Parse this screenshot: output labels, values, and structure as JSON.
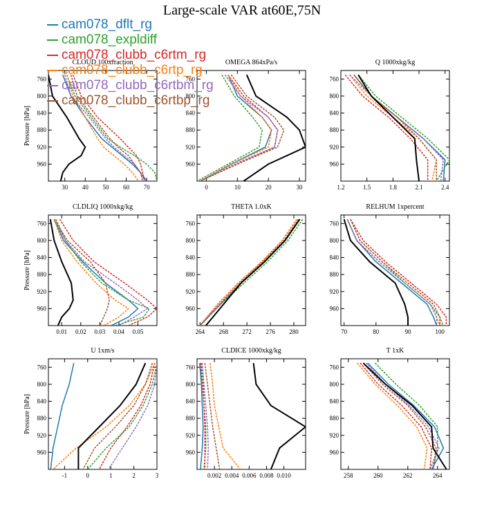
{
  "figure": {
    "title": "Large-scale VAR at60E,75N",
    "legend": [
      {
        "name": "cam078_dflt_rg",
        "color": "#1f77b4"
      },
      {
        "name": "cam078_expldiff",
        "color": "#2ca02c"
      },
      {
        "name": "cam078_clubb_c6rtm_rg",
        "color": "#d62728"
      },
      {
        "name": "cam078_clubb_c6rtp_rg",
        "color": "#ff7f0e"
      },
      {
        "name": "cam078_clubb_c6rtbm_rg",
        "color": "#9467bd"
      },
      {
        "name": "cam078_clubb_c6rtbp_rg",
        "color": "#a0522d"
      }
    ],
    "extra_series_color": "#000000"
  },
  "chart_data": [
    {
      "type": "line",
      "title": "CLOUD  100xfraction",
      "ylabel": "Pressure [hPa]",
      "xlim": [
        22,
        75
      ],
      "ylim": [
        740,
        1000
      ],
      "y_inverted": true,
      "xticks": [
        30,
        40,
        50,
        60,
        70
      ],
      "yticks": [
        760,
        800,
        840,
        880,
        920,
        960
      ],
      "y": [
        750,
        800,
        850,
        900,
        920,
        940,
        960,
        980,
        1000
      ],
      "series": [
        {
          "name": "cam078_dflt_rg",
          "x": [
            29,
            33,
            40,
            48,
            53,
            58,
            63,
            67,
            70
          ]
        },
        {
          "name": "cam078_expldiff",
          "x": [
            31,
            35,
            43,
            51,
            57,
            64,
            70,
            74,
            75
          ]
        },
        {
          "name": "cam078_clubb_c6rtm_rg",
          "x": [
            34,
            38,
            46,
            57,
            61,
            65,
            67,
            68,
            69
          ]
        },
        {
          "name": "cam078_clubb_c6rtp_rg",
          "x": [
            31,
            34,
            40,
            46,
            49,
            54,
            59,
            63,
            66
          ]
        },
        {
          "name": "cam078_clubb_c6rtbm_rg",
          "x": [
            30,
            33,
            42,
            50,
            54,
            59,
            64,
            67,
            69
          ]
        },
        {
          "name": "cam078_clubb_c6rtbp_rg",
          "x": [
            33,
            36,
            44,
            52,
            56,
            61,
            64,
            67,
            68
          ]
        },
        {
          "x": [
            22,
            24,
            31,
            37,
            40,
            38,
            32,
            29,
            28
          ]
        }
      ]
    },
    {
      "type": "line",
      "title": "OMEGA  864xPa/s",
      "ylabel": "",
      "xlim": [
        -3,
        32
      ],
      "ylim": [
        740,
        1000
      ],
      "y_inverted": true,
      "xticks": [
        0,
        10,
        20,
        30
      ],
      "yticks": [
        760,
        800,
        840,
        880,
        920,
        960
      ],
      "y": [
        750,
        800,
        850,
        880,
        920,
        960,
        1000
      ],
      "series": [
        {
          "name": "cam078_dflt_rg",
          "x": [
            7,
            10,
            18,
            21,
            19,
            8,
            -2
          ]
        },
        {
          "name": "cam078_expldiff",
          "x": [
            5,
            9,
            15,
            18,
            17,
            7,
            -3
          ]
        },
        {
          "name": "cam078_clubb_c6rtm_rg",
          "x": [
            7,
            12,
            20,
            23,
            22,
            10,
            -2
          ]
        },
        {
          "name": "cam078_clubb_c6rtp_rg",
          "x": [
            7,
            11,
            18,
            21,
            20,
            8,
            -2
          ]
        },
        {
          "name": "cam078_clubb_c6rtbm_rg",
          "x": [
            6,
            11,
            20,
            23,
            22,
            9,
            -2
          ]
        },
        {
          "name": "cam078_clubb_c6rtbp_rg",
          "x": [
            8,
            13,
            22,
            25,
            23,
            10,
            -2
          ]
        },
        {
          "x": [
            13,
            16,
            26,
            30,
            32,
            20,
            12
          ]
        }
      ]
    },
    {
      "type": "line",
      "title": "Q  1000xkg/kg",
      "ylabel": "",
      "xlim": [
        1.2,
        2.45
      ],
      "ylim": [
        740,
        1000
      ],
      "y_inverted": true,
      "xticks": [
        1.2,
        1.5,
        1.8,
        2.1,
        2.4
      ],
      "yticks": [
        760,
        800,
        840,
        880,
        920,
        960
      ],
      "y": [
        750,
        800,
        850,
        900,
        950,
        1000
      ],
      "series": [
        {
          "name": "cam078_dflt_rg",
          "x": [
            1.35,
            1.55,
            1.85,
            2.15,
            2.4,
            2.38
          ]
        },
        {
          "name": "cam078_expldiff",
          "x": [
            1.4,
            1.6,
            1.9,
            2.2,
            2.45,
            2.3
          ]
        },
        {
          "name": "cam078_clubb_c6rtm_rg",
          "x": [
            1.25,
            1.45,
            1.75,
            2.0,
            2.2,
            2.2
          ]
        },
        {
          "name": "cam078_clubb_c6rtp_rg",
          "x": [
            1.3,
            1.5,
            1.8,
            2.1,
            2.3,
            2.25
          ]
        },
        {
          "name": "cam078_clubb_c6rtbm_rg",
          "x": [
            1.3,
            1.55,
            1.85,
            2.15,
            2.38,
            2.35
          ]
        },
        {
          "name": "cam078_clubb_c6rtbp_rg",
          "x": [
            1.35,
            1.55,
            1.85,
            2.1,
            2.3,
            2.3
          ]
        },
        {
          "x": [
            1.4,
            1.55,
            1.8,
            2.05,
            2.07,
            2.1
          ]
        }
      ]
    },
    {
      "type": "line",
      "title": "CLDLIQ  1000xkg/kg",
      "ylabel": "Pressure [hPa]",
      "xlim": [
        0.003,
        0.06
      ],
      "ylim": [
        740,
        1000
      ],
      "y_inverted": true,
      "xticks": [
        0.01,
        0.02,
        0.03,
        0.04,
        0.05
      ],
      "yticks": [
        760,
        800,
        840,
        880,
        920,
        960
      ],
      "y": [
        750,
        800,
        850,
        900,
        940,
        960,
        980,
        1000
      ],
      "series": [
        {
          "name": "cam078_dflt_rg",
          "x": [
            0.006,
            0.011,
            0.021,
            0.033,
            0.045,
            0.05,
            0.045,
            0.036
          ]
        },
        {
          "name": "cam078_expldiff",
          "x": [
            0.007,
            0.012,
            0.02,
            0.031,
            0.045,
            0.056,
            0.053,
            0.038
          ]
        },
        {
          "name": "cam078_clubb_c6rtm_rg",
          "x": [
            0.009,
            0.016,
            0.027,
            0.043,
            0.055,
            0.06,
            0.055,
            0.045
          ]
        },
        {
          "name": "cam078_clubb_c6rtp_rg",
          "x": [
            0.006,
            0.01,
            0.018,
            0.028,
            0.038,
            0.045,
            0.04,
            0.032
          ]
        },
        {
          "name": "cam078_clubb_c6rtbm_rg",
          "x": [
            0.006,
            0.012,
            0.022,
            0.038,
            0.05,
            0.055,
            0.048,
            0.04
          ]
        },
        {
          "name": "cam078_clubb_c6rtbp_rg",
          "x": [
            0.006,
            0.013,
            0.025,
            0.033,
            0.035,
            0.034,
            0.032,
            0.03
          ]
        },
        {
          "x": [
            0.004,
            0.006,
            0.01,
            0.015,
            0.016,
            0.014,
            0.01,
            0.008
          ]
        }
      ]
    },
    {
      "type": "line",
      "title": "THETA  1.0xK",
      "ylabel": "",
      "xlim": [
        263.5,
        282
      ],
      "ylim": [
        740,
        1000
      ],
      "y_inverted": true,
      "xticks": [
        264,
        268,
        272,
        276,
        280
      ],
      "yticks": [
        760,
        800,
        840,
        880,
        920,
        960
      ],
      "y": [
        750,
        800,
        850,
        900,
        950,
        1000
      ],
      "series": [
        {
          "name": "cam078_dflt_rg",
          "x": [
            281,
            278.5,
            275,
            271,
            267.5,
            264
          ]
        },
        {
          "name": "cam078_expldiff",
          "x": [
            281.5,
            279,
            275.5,
            271.5,
            267.5,
            264
          ]
        },
        {
          "name": "cam078_clubb_c6rtm_rg",
          "x": [
            280.5,
            278,
            274.5,
            270.5,
            267,
            264
          ]
        },
        {
          "name": "cam078_clubb_c6rtp_rg",
          "x": [
            280.5,
            278,
            274.5,
            270.5,
            267,
            264
          ]
        },
        {
          "name": "cam078_clubb_c6rtbm_rg",
          "x": [
            281,
            278.5,
            275,
            271,
            267.5,
            264
          ]
        },
        {
          "name": "cam078_clubb_c6rtbp_rg",
          "x": [
            280.8,
            278.3,
            274.7,
            270.8,
            267.3,
            264
          ]
        },
        {
          "x": [
            281,
            278.5,
            275,
            271,
            268,
            265
          ]
        }
      ]
    },
    {
      "type": "line",
      "title": "RELHUM  1xpercent",
      "ylabel": "",
      "xlim": [
        69,
        103
      ],
      "ylim": [
        740,
        1000
      ],
      "y_inverted": true,
      "xticks": [
        70,
        80,
        90,
        100
      ],
      "yticks": [
        760,
        800,
        840,
        880,
        920,
        960
      ],
      "y": [
        750,
        800,
        850,
        900,
        950,
        980,
        1000
      ],
      "series": [
        {
          "name": "cam078_dflt_rg",
          "x": [
            71,
            74,
            80,
            88,
            96,
            98,
            99
          ]
        },
        {
          "name": "cam078_expldiff",
          "x": [
            72,
            75,
            82,
            89,
            97,
            100,
            101
          ]
        },
        {
          "name": "cam078_clubb_c6rtm_rg",
          "x": [
            72,
            76,
            83,
            91,
            99,
            102,
            102
          ]
        },
        {
          "name": "cam078_clubb_c6rtp_rg",
          "x": [
            71,
            74,
            81,
            89,
            97,
            99,
            100
          ]
        },
        {
          "name": "cam078_clubb_c6rtbm_rg",
          "x": [
            71,
            74,
            81,
            89,
            97,
            99,
            99
          ]
        },
        {
          "name": "cam078_clubb_c6rtbp_rg",
          "x": [
            72,
            75,
            82,
            90,
            98,
            100,
            100
          ]
        },
        {
          "x": [
            70,
            72,
            78,
            86,
            89,
            90,
            90
          ]
        }
      ]
    },
    {
      "type": "line",
      "title": "U  1xm/s",
      "ylabel": "Pressure [hPa]",
      "xlim": [
        -1.7,
        3.0
      ],
      "ylim": [
        740,
        1000
      ],
      "y_inverted": true,
      "xticks": [
        -1.0,
        0.0,
        1.0,
        2.0,
        3.0
      ],
      "yticks": [
        760,
        800,
        840,
        880,
        920,
        960
      ],
      "y": [
        750,
        800,
        850,
        900,
        950,
        1000
      ],
      "series": [
        {
          "name": "cam078_dflt_rg",
          "x": [
            -0.6,
            -0.8,
            -1.1,
            -1.3,
            -1.5,
            -1.6
          ]
        },
        {
          "name": "cam078_expldiff",
          "x": [
            3.0,
            2.8,
            2.4,
            1.8,
            0.8,
            0.0
          ]
        },
        {
          "name": "cam078_clubb_c6rtm_rg",
          "x": [
            2.9,
            2.7,
            2.3,
            1.7,
            1.0,
            0.5
          ]
        },
        {
          "name": "cam078_clubb_c6rtp_rg",
          "x": [
            2.9,
            2.5,
            1.8,
            0.8,
            -0.5,
            -1.5
          ]
        },
        {
          "name": "cam078_clubb_c6rtbm_rg",
          "x": [
            3.0,
            2.9,
            2.6,
            2.1,
            1.5,
            0.9
          ]
        },
        {
          "name": "cam078_clubb_c6rtbp_rg",
          "x": [
            2.8,
            2.5,
            2.0,
            1.2,
            0.3,
            -0.2
          ]
        },
        {
          "x": [
            2.5,
            2.1,
            1.4,
            0.5,
            -0.4,
            -0.4
          ]
        }
      ]
    },
    {
      "type": "line",
      "title": "CLDICE  1000xkg/kg",
      "ylabel": "",
      "xlim": [
        0.0,
        0.0125
      ],
      "ylim": [
        740,
        1000
      ],
      "y_inverted": true,
      "xticks": [
        0.002,
        0.004,
        0.006,
        0.008,
        0.01
      ],
      "yticks": [
        760,
        800,
        840,
        880,
        920,
        960
      ],
      "y": [
        750,
        800,
        850,
        900,
        950,
        1000
      ],
      "series": [
        {
          "name": "cam078_dflt_rg",
          "x": [
            0.0003,
            0.0005,
            0.0006,
            0.0007,
            0.0006,
            0.0004
          ]
        },
        {
          "name": "cam078_expldiff",
          "x": [
            0.0005,
            0.0007,
            0.0008,
            0.001,
            0.001,
            0.0008
          ]
        },
        {
          "name": "cam078_clubb_c6rtm_rg",
          "x": [
            0.0004,
            0.0006,
            0.0008,
            0.0009,
            0.0009,
            0.0009
          ]
        },
        {
          "name": "cam078_clubb_c6rtp_rg",
          "x": [
            0.0015,
            0.0018,
            0.002,
            0.0025,
            0.003,
            0.005
          ]
        },
        {
          "name": "cam078_clubb_c6rtbm_rg",
          "x": [
            0.0006,
            0.0008,
            0.001,
            0.0012,
            0.0013,
            0.0012
          ]
        },
        {
          "name": "cam078_clubb_c6rtbp_rg",
          "x": [
            0.0009,
            0.0012,
            0.0015,
            0.0018,
            0.0022,
            0.0026
          ]
        },
        {
          "x": [
            0.0065,
            0.0068,
            0.0085,
            0.0125,
            0.0095,
            0.0085
          ]
        }
      ]
    },
    {
      "type": "line",
      "title": "T  1xK",
      "ylabel": "",
      "xlim": [
        257.5,
        264.8
      ],
      "ylim": [
        740,
        1000
      ],
      "y_inverted": true,
      "xticks": [
        258.0,
        260.0,
        262.0,
        264.0
      ],
      "yticks": [
        760,
        800,
        840,
        880,
        920,
        960
      ],
      "y": [
        750,
        800,
        850,
        900,
        950,
        1000
      ],
      "series": [
        {
          "name": "cam078_dflt_rg",
          "x": [
            259.3,
            260.7,
            262.4,
            263.8,
            264.4,
            263.6
          ]
        },
        {
          "name": "cam078_expldiff",
          "x": [
            259.8,
            261.2,
            262.8,
            264.0,
            264.0,
            263.7
          ]
        },
        {
          "name": "cam078_clubb_c6rtm_rg",
          "x": [
            258.8,
            260.0,
            261.6,
            262.9,
            263.6,
            263.5
          ]
        },
        {
          "name": "cam078_clubb_c6rtp_rg",
          "x": [
            258.6,
            259.8,
            261.3,
            262.6,
            263.3,
            263.1
          ]
        },
        {
          "name": "cam078_clubb_c6rtbm_rg",
          "x": [
            259.2,
            260.5,
            262.1,
            263.4,
            264.1,
            263.5
          ]
        },
        {
          "name": "cam078_clubb_c6rtbp_rg",
          "x": [
            259.0,
            260.3,
            262.0,
            263.2,
            263.9,
            263.7
          ]
        },
        {
          "x": [
            259.0,
            260.5,
            262.3,
            263.6,
            263.7,
            264.6
          ]
        }
      ]
    }
  ]
}
